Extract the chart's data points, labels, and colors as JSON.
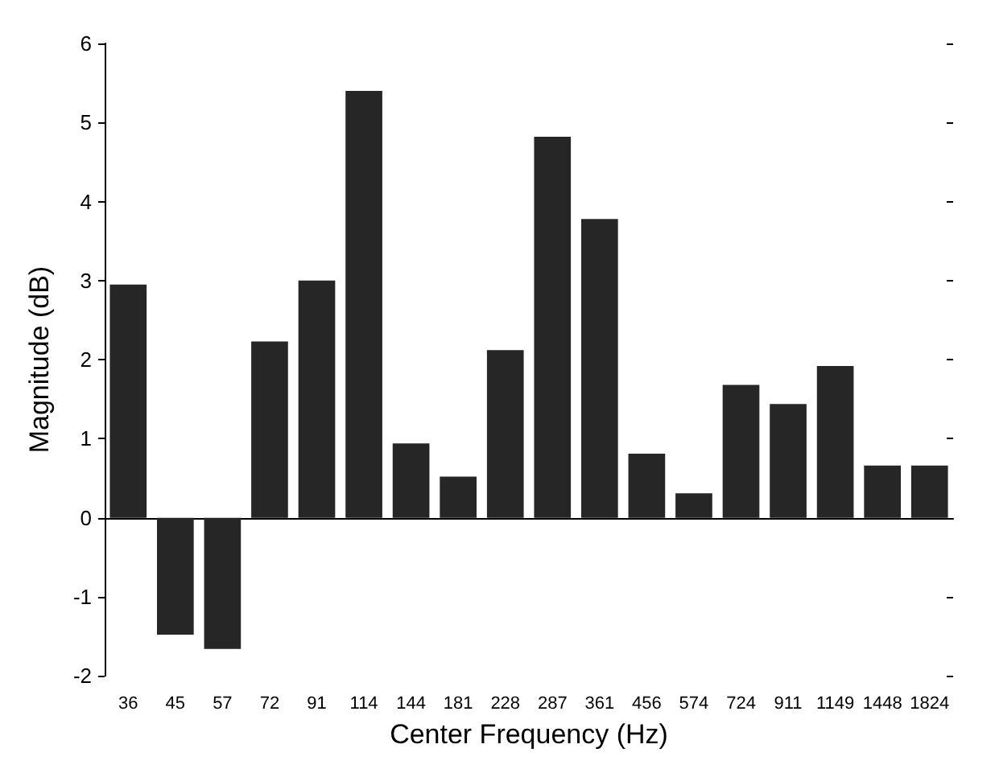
{
  "chart_data": {
    "type": "bar",
    "xlabel": "Center Frequency (Hz)",
    "ylabel": "Magnitude (dB)",
    "categories": [
      "36",
      "45",
      "57",
      "72",
      "91",
      "114",
      "144",
      "181",
      "228",
      "287",
      "361",
      "456",
      "574",
      "724",
      "911",
      "1149",
      "1448",
      "1824"
    ],
    "values": [
      2.95,
      -1.48,
      -1.66,
      2.23,
      3.0,
      5.4,
      0.94,
      0.52,
      2.12,
      4.82,
      3.78,
      0.81,
      0.31,
      1.68,
      1.44,
      1.92,
      0.66,
      0.66
    ],
    "color": "#262626",
    "ylim": [
      -2,
      6
    ],
    "yticks": [
      -2,
      -1,
      0,
      1,
      2,
      3,
      4,
      5,
      6
    ]
  }
}
